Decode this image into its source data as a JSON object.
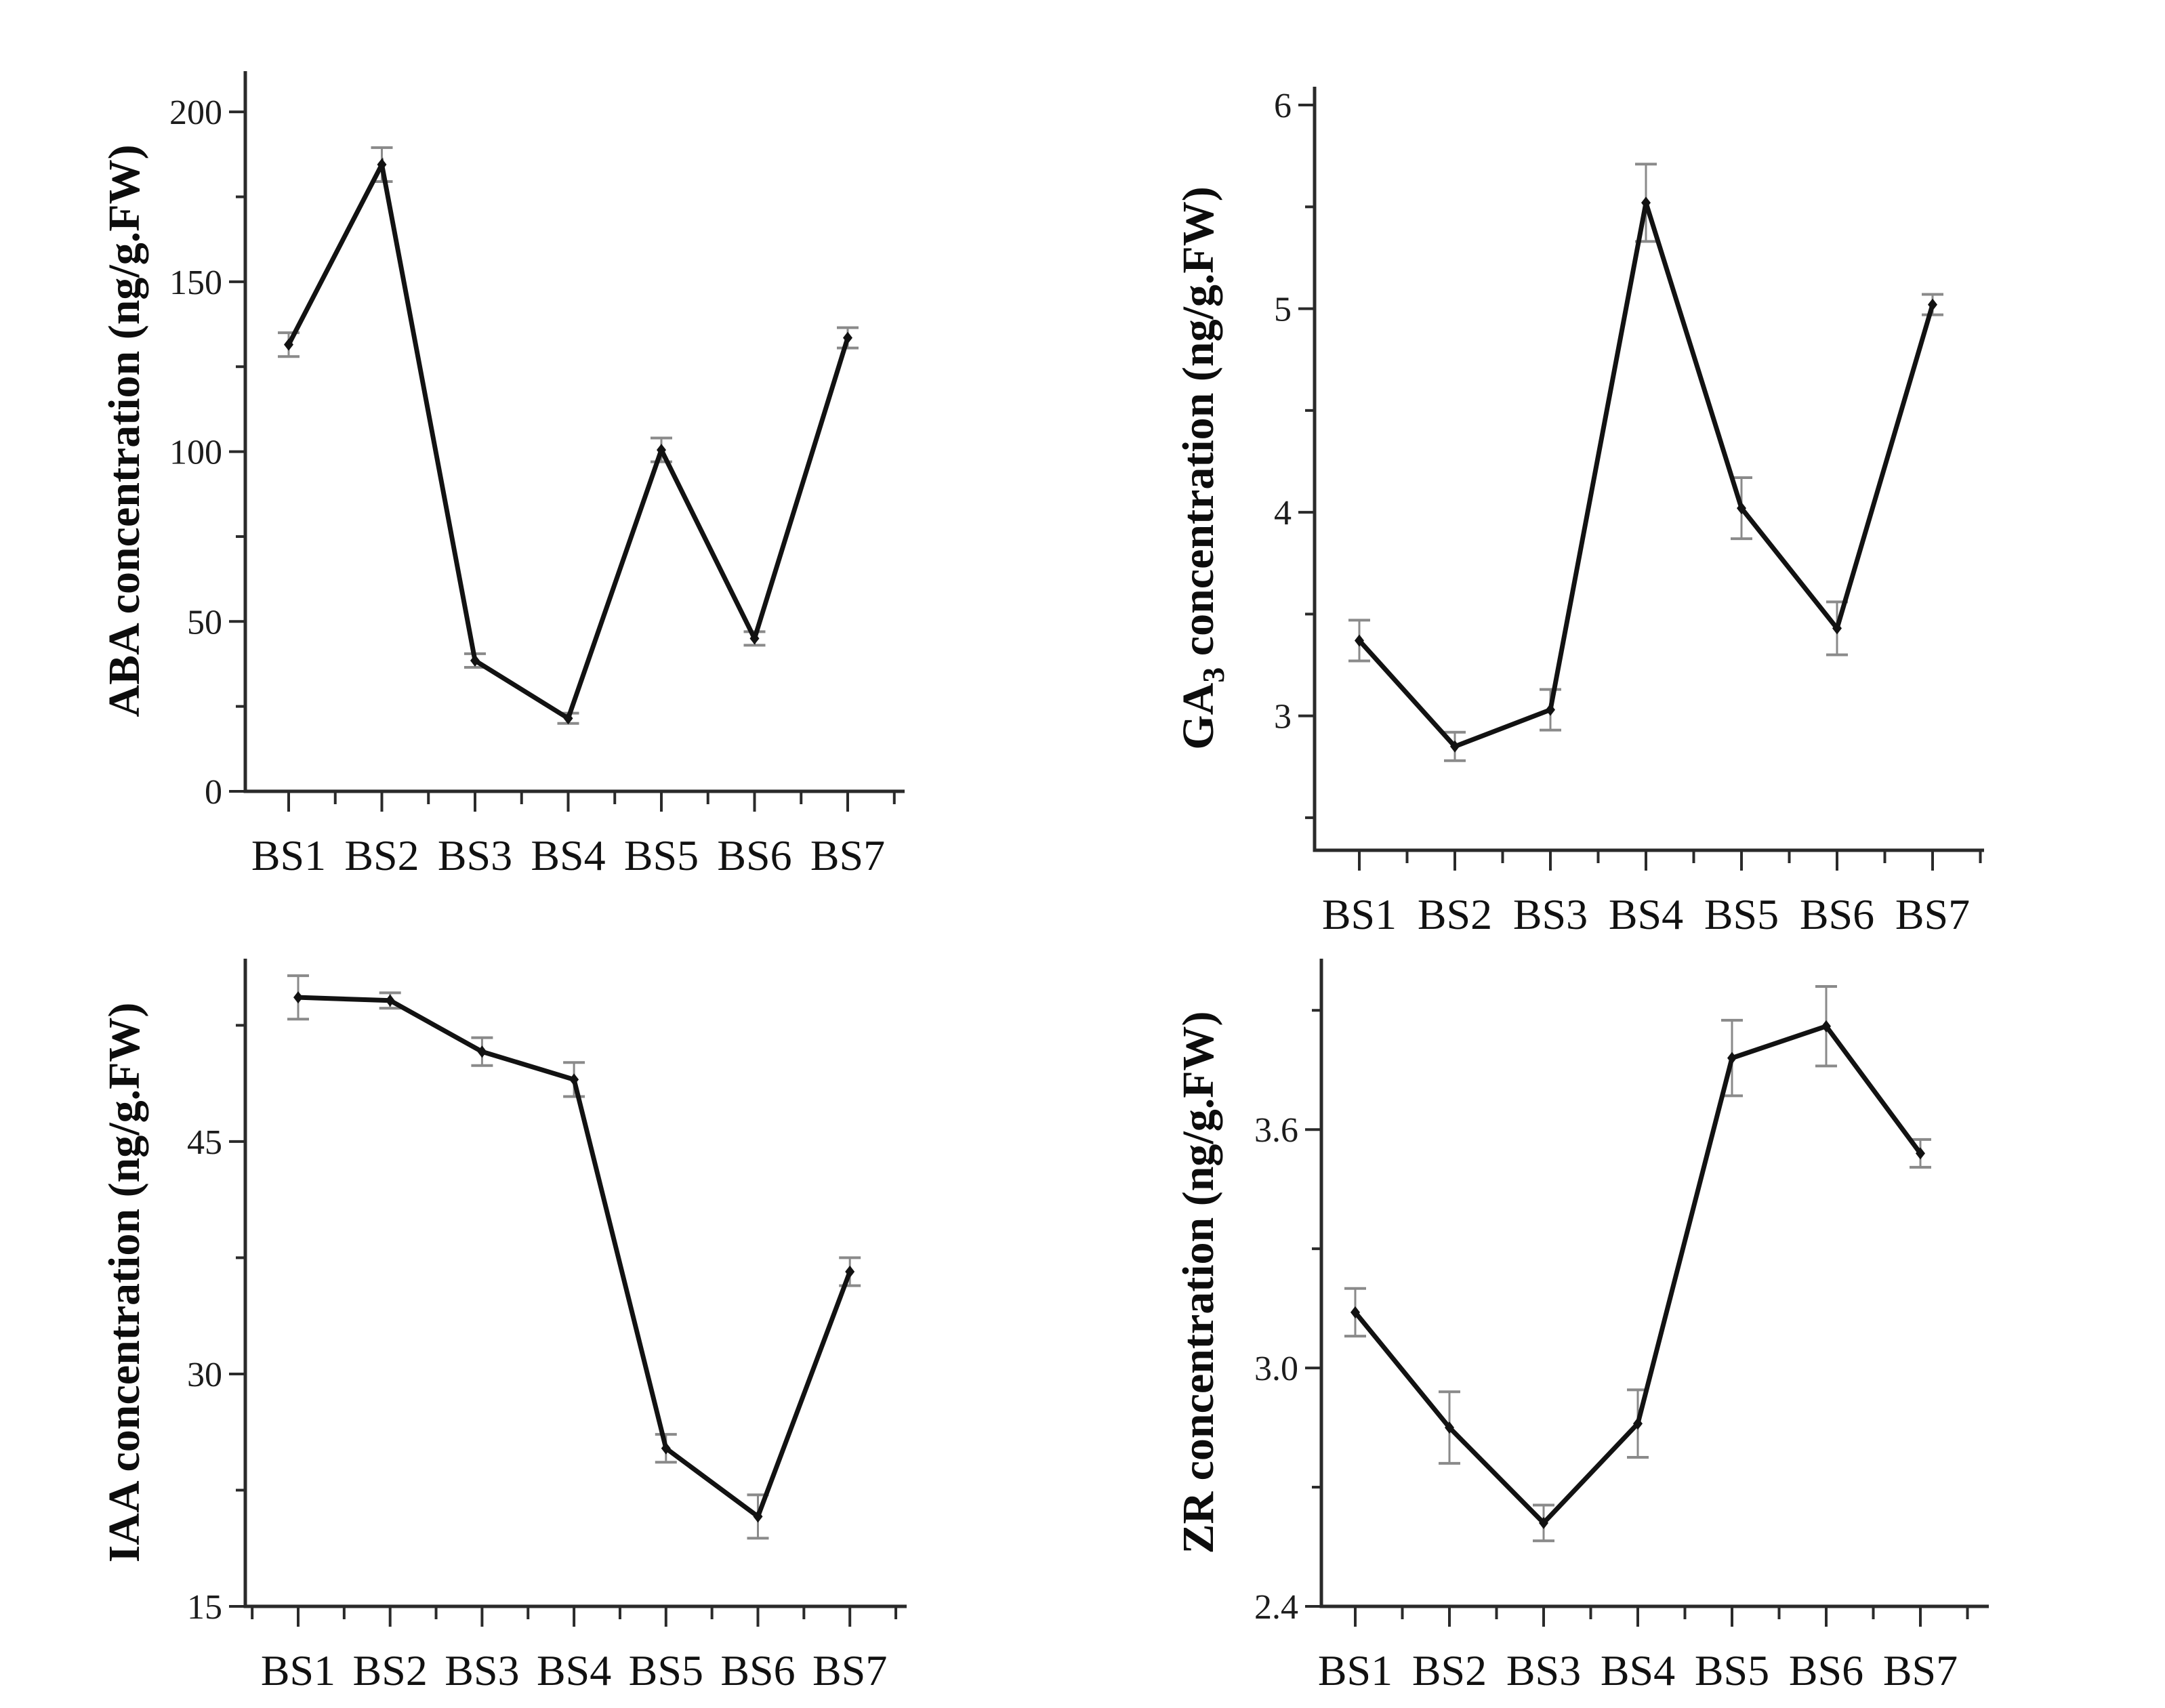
{
  "page": {
    "background": "#ffffff",
    "figure_type": "four-panel hormone concentration line charts",
    "line_color": "#121212",
    "error_bar_color": "#8a8a8a",
    "axis_color": "#2a2a2a"
  },
  "chart_data": [
    {
      "id": "aba",
      "type": "line",
      "title": "",
      "ylabel_parts": [
        {
          "t": "ABA concentration (ng/g.FW)",
          "sub": false
        }
      ],
      "xlabel": "",
      "categories": [
        "BS1",
        "BS2",
        "BS3",
        "BS4",
        "BS5",
        "BS6",
        "BS7"
      ],
      "series": [
        {
          "name": "ABA",
          "values": [
            131.5,
            184.5,
            38.5,
            21.5,
            100.5,
            45,
            133.5
          ],
          "errors": [
            3.5,
            5,
            2,
            1.5,
            3.5,
            2,
            3
          ]
        }
      ],
      "ylim": [
        0,
        212
      ],
      "yticks_major": [
        {
          "v": 0,
          "label": "0"
        },
        {
          "v": 50,
          "label": "50"
        },
        {
          "v": 100,
          "label": "100"
        },
        {
          "v": 150,
          "label": "150"
        },
        {
          "v": 200,
          "label": "200"
        }
      ],
      "yticks_minor": [
        25,
        75,
        125,
        175
      ],
      "grid": false,
      "legend": "none",
      "marker": "diamond"
    },
    {
      "id": "ga3",
      "type": "line",
      "title": "",
      "ylabel_parts": [
        {
          "t": "GA",
          "sub": false
        },
        {
          "t": "3",
          "sub": true
        },
        {
          "t": " concentration (ng/g.FW)",
          "sub": false
        }
      ],
      "xlabel": "",
      "categories": [
        "BS1",
        "BS2",
        "BS3",
        "BS4",
        "BS5",
        "BS6",
        "BS7"
      ],
      "series": [
        {
          "name": "GA3",
          "values": [
            3.37,
            2.85,
            3.03,
            5.52,
            4.02,
            3.43,
            5.02
          ],
          "errors": [
            0.1,
            0.07,
            0.1,
            0.19,
            0.15,
            0.13,
            0.05
          ]
        }
      ],
      "ylim": [
        2.34,
        6.09
      ],
      "yticks_major": [
        {
          "v": 3,
          "label": "3"
        },
        {
          "v": 4,
          "label": "4"
        },
        {
          "v": 5,
          "label": "5"
        },
        {
          "v": 6,
          "label": "6"
        }
      ],
      "yticks_minor": [
        2.5,
        3.5,
        4.5,
        5.5
      ],
      "grid": false,
      "legend": "none",
      "marker": "diamond"
    },
    {
      "id": "iaa",
      "type": "line",
      "title": "",
      "ylabel_parts": [
        {
          "t": "IAA concentration (ng/g.FW)",
          "sub": false
        }
      ],
      "xlabel": "",
      "categories": [
        "BS1",
        "BS2",
        "BS3",
        "BS4",
        "BS5",
        "BS6",
        "BS7"
      ],
      "series": [
        {
          "name": "IAA",
          "values": [
            54.3,
            54.1,
            50.8,
            49.0,
            25.2,
            20.8,
            36.6
          ],
          "errors": [
            1.4,
            0.5,
            0.9,
            1.1,
            0.9,
            1.4,
            0.9
          ]
        }
      ],
      "ylim": [
        15,
        56.8
      ],
      "yticks_major": [
        {
          "v": 15,
          "label": "15"
        },
        {
          "v": 30,
          "label": "30"
        },
        {
          "v": 45,
          "label": "45"
        }
      ],
      "yticks_minor": [
        22.5,
        37.5,
        52.5
      ],
      "grid": false,
      "legend": "none",
      "marker": "diamond"
    },
    {
      "id": "zr",
      "type": "line",
      "title": "",
      "ylabel_parts": [
        {
          "t": "ZR concentration (ng/g.FW)",
          "sub": false
        }
      ],
      "xlabel": "",
      "categories": [
        "BS1",
        "BS2",
        "BS3",
        "BS4",
        "BS5",
        "BS6",
        "BS7"
      ],
      "series": [
        {
          "name": "ZR",
          "values": [
            3.14,
            2.85,
            2.61,
            2.86,
            3.78,
            3.86,
            3.54
          ],
          "errors": [
            0.06,
            0.09,
            0.045,
            0.085,
            0.095,
            0.1,
            0.035
          ]
        }
      ],
      "ylim": [
        2.4,
        4.03
      ],
      "yticks_major": [
        {
          "v": 2.4,
          "label": "2.4"
        },
        {
          "v": 3.0,
          "label": "3.0"
        },
        {
          "v": 3.6,
          "label": "3.6"
        }
      ],
      "yticks_minor": [
        2.7,
        3.3,
        3.9
      ],
      "grid": false,
      "legend": "none",
      "marker": "diamond"
    }
  ]
}
